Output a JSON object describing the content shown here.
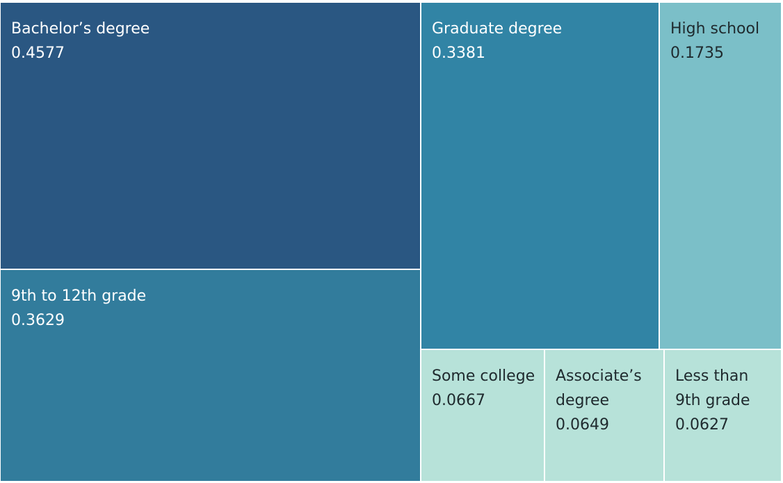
{
  "chart_data": {
    "type": "treemap",
    "items": [
      {
        "name": "Bachelor’s degree",
        "value_label": "0.4577",
        "value": 0.4577,
        "color": "#2a5782",
        "text_color": "#ffffff"
      },
      {
        "name": "9th to 12th grade",
        "value_label": "0.3629",
        "value": 0.3629,
        "color": "#327c9c",
        "text_color": "#ffffff"
      },
      {
        "name": "Graduate degree",
        "value_label": "0.3381",
        "value": 0.3381,
        "color": "#3184a5",
        "text_color": "#ffffff"
      },
      {
        "name": "High school",
        "value_label": "0.1735",
        "value": 0.1735,
        "color": "#7bbfc8",
        "text_color": "#1f2a2e"
      },
      {
        "name": "Some college",
        "value_label": "0.0667",
        "value": 0.0667,
        "color": "#b7e2d9",
        "text_color": "#1f2a2e"
      },
      {
        "name": "Associate’s degree",
        "value_label": "0.0649",
        "value": 0.0649,
        "color": "#b7e2d9",
        "text_color": "#1f2a2e"
      },
      {
        "name": "Less than 9th grade",
        "value_label": "0.0627",
        "value": 0.0627,
        "color": "#b7e2d9",
        "text_color": "#1f2a2e"
      }
    ]
  }
}
